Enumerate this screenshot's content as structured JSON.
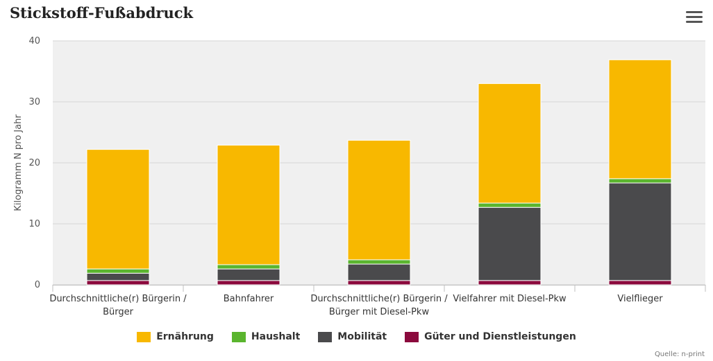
{
  "chart_data": {
    "type": "bar",
    "stacked": true,
    "title": "Stickstoff-Fußabdruck",
    "ylabel": "Kilogramm N pro Jahr",
    "xlabel": "",
    "ylim": [
      0,
      40
    ],
    "yticks": [
      0,
      10,
      20,
      30,
      40
    ],
    "grid": true,
    "categories": [
      [
        "Durchschnittliche(r) Bürgerin /",
        "Bürger"
      ],
      [
        "Bahnfahrer"
      ],
      [
        "Durchschnittliche(r) Bürgerin /",
        "Bürger mit Diesel-Pkw"
      ],
      [
        "Vielfahrer mit Diesel-Pkw"
      ],
      [
        "Vielflieger"
      ]
    ],
    "series": [
      {
        "name": "Güter und Dienstleistungen",
        "color": "#8b0a3d",
        "values": [
          0.7,
          0.7,
          0.7,
          0.7,
          0.7
        ]
      },
      {
        "name": "Mobilität",
        "color": "#4a4a4c",
        "values": [
          1.2,
          1.9,
          2.7,
          12.0,
          16.0
        ]
      },
      {
        "name": "Haushalt",
        "color": "#5ab52e",
        "values": [
          0.7,
          0.7,
          0.7,
          0.7,
          0.7
        ]
      },
      {
        "name": "Ernährung",
        "color": "#f8b800",
        "values": [
          19.6,
          19.6,
          19.6,
          19.6,
          19.5
        ]
      }
    ],
    "legend_order": [
      "Ernährung",
      "Haushalt",
      "Mobilität",
      "Güter und Dienstleistungen"
    ],
    "legend_position": "bottom"
  },
  "credit": "Quelle: n-print"
}
